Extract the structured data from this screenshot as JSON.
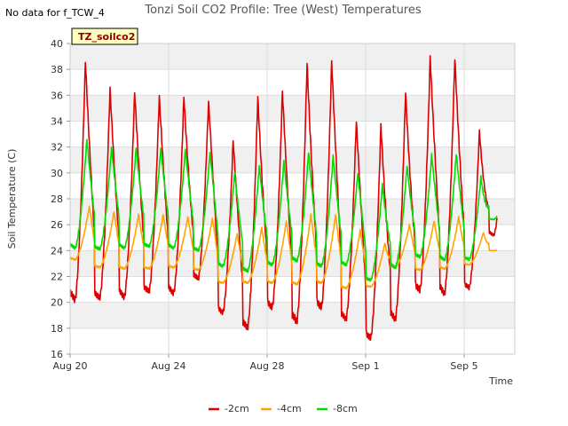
{
  "chart_data": {
    "type": "line",
    "title": "Tonzi Soil CO2 Profile: Tree (West) Temperatures",
    "no_data_note": "No data for f_TCW_4",
    "badge": "TZ_soilco2",
    "xlabel": "Time",
    "ylabel": "Soil Temperature (C)",
    "ylim": [
      16,
      40
    ],
    "yticks": [
      16,
      18,
      20,
      22,
      24,
      26,
      28,
      30,
      32,
      34,
      36,
      38,
      40
    ],
    "x_range_days": [
      "Aug 20",
      "Sep 7"
    ],
    "xticks": [
      {
        "label": "Aug 20",
        "day": 0
      },
      {
        "label": "Aug 24",
        "day": 4
      },
      {
        "label": "Aug 28",
        "day": 8
      },
      {
        "label": "Sep 1",
        "day": 12
      },
      {
        "label": "Sep 5",
        "day": 16
      }
    ],
    "grid": true,
    "legend_position": "bottom",
    "series": [
      {
        "name": "-2cm",
        "color": "#dd0000",
        "daily_min": [
          20.2,
          20.3,
          20.4,
          20.8,
          20.7,
          21.8,
          19.2,
          18.0,
          19.6,
          18.5,
          19.6,
          18.7,
          17.2,
          18.7,
          20.9,
          20.7,
          21.1,
          25.2
        ],
        "daily_max": [
          38.7,
          36.5,
          36.3,
          35.9,
          35.9,
          35.5,
          32.5,
          35.9,
          36.3,
          38.5,
          38.6,
          34.0,
          33.7,
          36.3,
          38.9,
          38.9,
          33.2,
          33.0
        ]
      },
      {
        "name": "-4cm",
        "color": "#ffa500",
        "daily_min": [
          23.3,
          22.7,
          22.6,
          22.6,
          22.7,
          22.5,
          21.5,
          21.5,
          21.5,
          21.4,
          21.5,
          21.1,
          21.2,
          22.7,
          22.5,
          22.6,
          22.9,
          24.0
        ],
        "daily_max": [
          27.4,
          27.0,
          26.8,
          26.8,
          26.6,
          26.5,
          25.3,
          25.8,
          26.3,
          26.8,
          26.8,
          25.6,
          24.6,
          26.0,
          26.3,
          26.6,
          25.4,
          24.3
        ]
      },
      {
        "name": "-8cm",
        "color": "#00dd00",
        "daily_min": [
          24.2,
          24.1,
          24.2,
          24.3,
          24.2,
          24.0,
          22.8,
          22.4,
          22.9,
          23.2,
          22.8,
          22.9,
          21.7,
          22.7,
          23.5,
          23.3,
          23.3,
          26.4
        ],
        "daily_max": [
          32.6,
          32.0,
          31.9,
          31.9,
          31.8,
          31.6,
          30.0,
          30.6,
          30.9,
          31.6,
          31.3,
          30.0,
          29.1,
          30.6,
          31.4,
          31.5,
          29.7,
          28.3
        ]
      }
    ]
  }
}
